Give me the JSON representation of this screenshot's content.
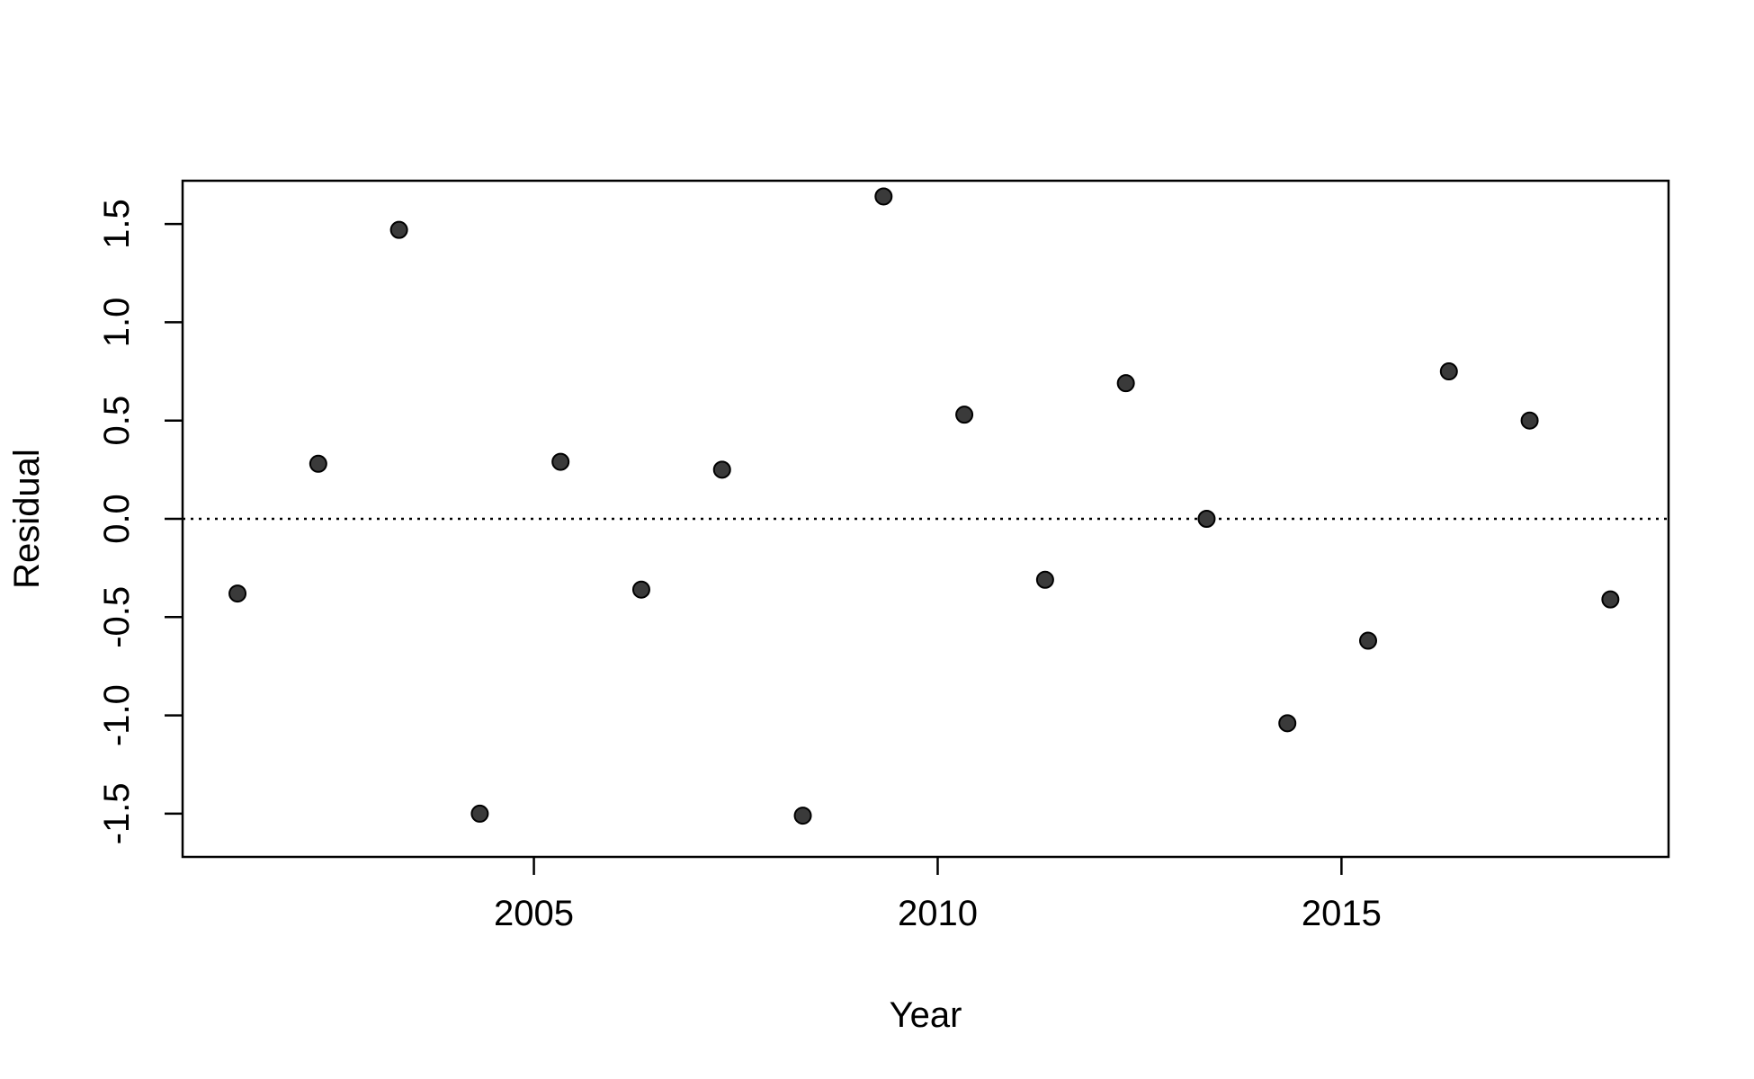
{
  "chart_data": {
    "type": "scatter",
    "title": "",
    "xlabel": "Year",
    "ylabel": "Residual",
    "xlim": [
      2000.65,
      2019.05
    ],
    "ylim": [
      -1.72,
      1.72
    ],
    "x_ticks": [
      2005,
      2010,
      2015
    ],
    "x_tick_labels": [
      "2005",
      "2010",
      "2015"
    ],
    "y_ticks": [
      -1.5,
      -1.0,
      -0.5,
      0.0,
      0.5,
      1.0,
      1.5
    ],
    "y_tick_labels": [
      "-1.5",
      "-1.0",
      "-0.5",
      "0.0",
      "0.5",
      "1.0",
      "1.5"
    ],
    "reference_line": {
      "y": 0,
      "style": "dotted"
    },
    "grid": false,
    "point_color": "#3a3a3a",
    "x": [
      2001.33,
      2002.33,
      2003.33,
      2004.33,
      2005.33,
      2006.33,
      2007.33,
      2008.33,
      2009.33,
      2010.33,
      2011.33,
      2012.33,
      2013.33,
      2014.33,
      2015.33,
      2016.33,
      2017.33,
      2018.33
    ],
    "y": [
      -0.38,
      0.28,
      1.47,
      -1.5,
      0.29,
      -0.36,
      0.25,
      -1.51,
      1.64,
      0.53,
      -0.31,
      0.69,
      0.0,
      -1.04,
      -0.62,
      0.75,
      0.5,
      -0.41
    ]
  }
}
